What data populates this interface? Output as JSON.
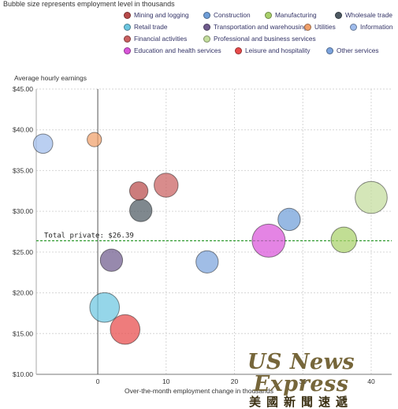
{
  "caption": "Bubble size represents employment level in thousands",
  "watermark": {
    "en": "US News Express",
    "zh": "美國新聞速遞"
  },
  "chart_data": {
    "type": "scatter",
    "subtype": "bubble",
    "title": "",
    "xlabel": "Over-the-month employment change in thousands",
    "ylabel": "Average hourly earnings",
    "xlim": [
      -9,
      43
    ],
    "ylim": [
      10,
      45
    ],
    "x_ticks": [
      0,
      10,
      20,
      30,
      40
    ],
    "x_tick_labels": [
      "0",
      "10",
      "20",
      "30",
      "40"
    ],
    "y_ticks": [
      10,
      15,
      20,
      25,
      30,
      35,
      40,
      45
    ],
    "y_tick_labels": [
      "$10.00",
      "$15.00",
      "$20.00",
      "$25.00",
      "$30.00",
      "$35.00",
      "$40.00",
      "$45.00"
    ],
    "grid": true,
    "legend_position": "top",
    "reference_line": {
      "label": "Total private: $26.39",
      "y": 26.39,
      "color": "#2e9a2e"
    },
    "series": [
      {
        "name": "Mining and logging",
        "color": "#b84a4a",
        "x": 6.0,
        "y": 32.5,
        "size": 3
      },
      {
        "name": "Construction",
        "color": "#6f9ed8",
        "x": 28.0,
        "y": 29.0,
        "size": 5
      },
      {
        "name": "Manufacturing",
        "color": "#a9d16b",
        "x": 36.0,
        "y": 26.5,
        "size": 7
      },
      {
        "name": "Wholesale trade",
        "color": "#4e5a63",
        "x": 6.3,
        "y": 30.1,
        "size": 5
      },
      {
        "name": "Retail trade",
        "color": "#6cc6e0",
        "x": 1.0,
        "y": 18.2,
        "size": 10
      },
      {
        "name": "Transportation and warehousing",
        "color": "#6f5b8d",
        "x": 2.0,
        "y": 24.0,
        "size": 5
      },
      {
        "name": "Utilities",
        "color": "#f0a06a",
        "x": -0.5,
        "y": 38.8,
        "size": 1.5
      },
      {
        "name": "Information",
        "color": "#9fbcec",
        "x": -8.0,
        "y": 38.3,
        "size": 3.5
      },
      {
        "name": "Financial activities",
        "color": "#c96060",
        "x": 10.0,
        "y": 33.2,
        "size": 6
      },
      {
        "name": "Professional and business services",
        "color": "#c3dd9c",
        "x": 40.0,
        "y": 31.7,
        "size": 12
      },
      {
        "name": "Education and health services",
        "color": "#d955d9",
        "x": 25.0,
        "y": 26.4,
        "size": 13
      },
      {
        "name": "Leisure and hospitality",
        "color": "#e84a4a",
        "x": 4.0,
        "y": 15.5,
        "size": 10
      },
      {
        "name": "Other services",
        "color": "#7ba3dd",
        "x": 16.0,
        "y": 23.8,
        "size": 5
      }
    ]
  }
}
